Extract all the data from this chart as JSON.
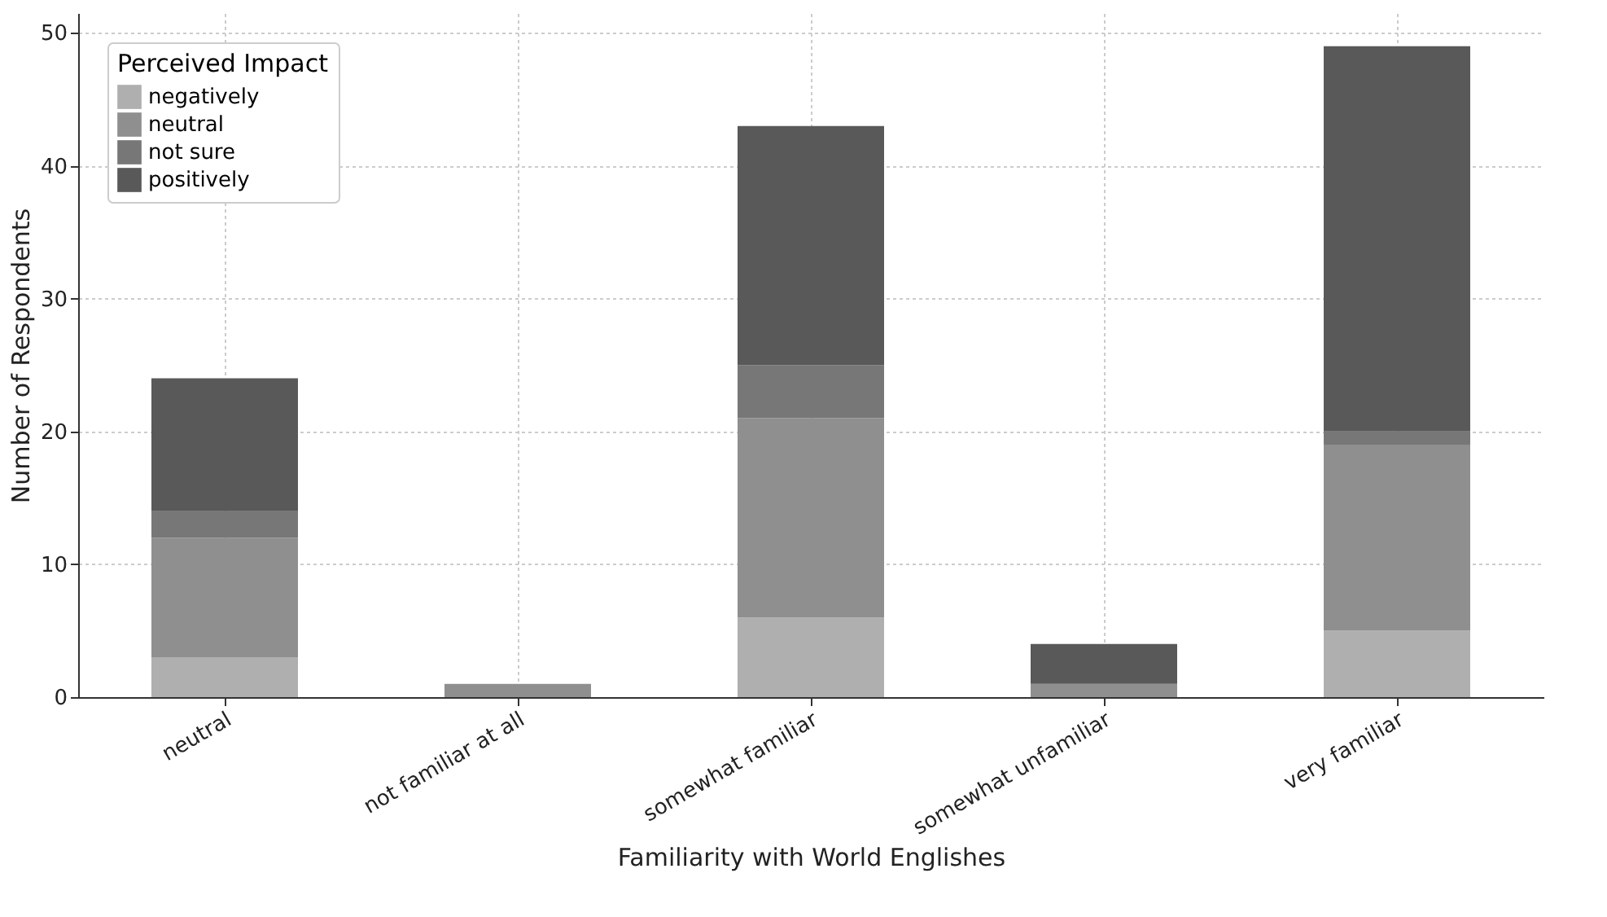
{
  "chart_data": {
    "type": "bar",
    "stacked": true,
    "xlabel": "Familiarity with World Englishes",
    "ylabel": "Number of Respondents",
    "legend_title": "Perceived Impact",
    "legend": "top left",
    "grid": true,
    "categories": [
      "neutral",
      "not familiar at all",
      "somewhat familiar",
      "somewhat unfamiliar",
      "very familiar"
    ],
    "ylim": [
      0,
      51.5
    ],
    "yticks": [
      0,
      10,
      20,
      30,
      40,
      50
    ],
    "series": [
      {
        "name": "negatively",
        "color": "#afafaf",
        "values": [
          3,
          0,
          6,
          0,
          5
        ]
      },
      {
        "name": "neutral",
        "color": "#8f8f8f",
        "values": [
          9,
          1,
          15,
          1,
          14
        ]
      },
      {
        "name": "not sure",
        "color": "#777777",
        "values": [
          2,
          0,
          4,
          0,
          1
        ]
      },
      {
        "name": "positively",
        "color": "#595959",
        "values": [
          10,
          0,
          18,
          3,
          29
        ]
      }
    ]
  }
}
